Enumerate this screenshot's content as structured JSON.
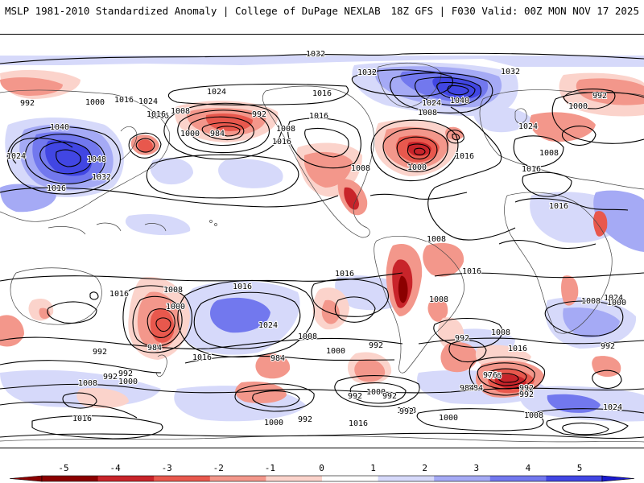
{
  "header": {
    "left": "MSLP 1981-2010 Standardized Anomaly | College of DuPage NEXLAB",
    "right": "18Z GFS | F030 Valid: 00Z MON NOV 17 2025"
  },
  "map": {
    "projection": "global equirectangular",
    "field": "MSLP standardized anomaly",
    "isobar_labels": [
      "1032",
      "1032",
      "1032",
      "1040",
      "1024",
      "1016",
      "1008",
      "1000",
      "992",
      "1016",
      "1024",
      "1016",
      "1008",
      "1040",
      "1048",
      "1032",
      "1024",
      "1016",
      "1016",
      "1024",
      "1008",
      "1000",
      "992",
      "984",
      "1008",
      "1016",
      "1016",
      "1016",
      "1008",
      "1000",
      "1016",
      "1024",
      "1008",
      "1000",
      "992",
      "1016",
      "1008",
      "1016",
      "1016",
      "1008",
      "1016",
      "1016",
      "1008",
      "1000",
      "984",
      "992",
      "1016",
      "1024",
      "1008",
      "1000",
      "992",
      "984",
      "992",
      "1008",
      "1016",
      "1024",
      "1008",
      "1000",
      "992",
      "992",
      "1008",
      "992",
      "1000",
      "1016",
      "1000",
      "992",
      "976",
      "984",
      "992",
      "1000",
      "992",
      "1008",
      "1016",
      "1024",
      "992",
      "976",
      "984",
      "992",
      "1008",
      "1000",
      "992"
    ]
  },
  "colorbar": {
    "ticks": [
      "-5",
      "-4",
      "-3",
      "-2",
      "-1",
      "0",
      "1",
      "2",
      "3",
      "4",
      "5"
    ],
    "colors": {
      "neg5": "#8b0000",
      "neg4": "#c8242a",
      "neg3": "#e8584d",
      "neg2": "#f3978b",
      "neg1": "#fbd3cb",
      "zero": "#ffffff",
      "pos1": "#d6d9fa",
      "pos2": "#a5aaf5",
      "pos3": "#7278ee",
      "pos4": "#4146e3",
      "pos5": "#1a1ad0"
    }
  }
}
